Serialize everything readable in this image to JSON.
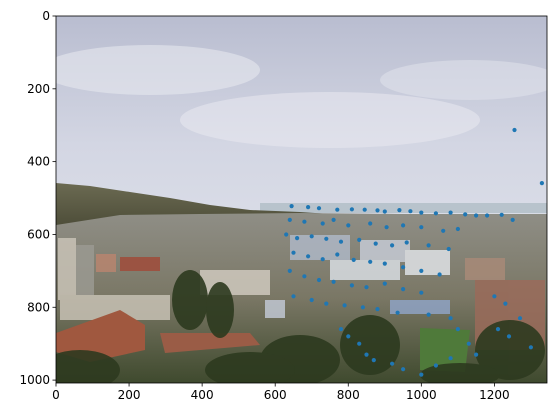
{
  "figure": {
    "x_ticks": [
      "0",
      "200",
      "400",
      "600",
      "800",
      "1000",
      "1200"
    ],
    "y_ticks": [
      "0",
      "200",
      "400",
      "600",
      "800",
      "1000"
    ],
    "x_tick_values": [
      0,
      200,
      400,
      600,
      800,
      1000,
      1200
    ],
    "y_tick_values": [
      0,
      200,
      400,
      600,
      800,
      1000
    ],
    "xlim": [
      0,
      1344
    ],
    "ylim": [
      1008,
      0
    ],
    "image_description": "Panoramic daytime photo of a hillside town with dense buildings, trees, and distant bay under a pale cloudy sky"
  },
  "chart_data": {
    "type": "scatter",
    "xlim": [
      0,
      1344
    ],
    "ylim": [
      1008,
      0
    ],
    "marker_color": "#1f77b4",
    "points": [
      [
        1255,
        313
      ],
      [
        1330,
        459
      ],
      [
        645,
        522
      ],
      [
        690,
        525
      ],
      [
        720,
        528
      ],
      [
        770,
        532
      ],
      [
        810,
        531
      ],
      [
        845,
        532
      ],
      [
        880,
        534
      ],
      [
        900,
        537
      ],
      [
        940,
        533
      ],
      [
        970,
        536
      ],
      [
        1000,
        540
      ],
      [
        1040,
        542
      ],
      [
        1080,
        540
      ],
      [
        1120,
        545
      ],
      [
        1150,
        548
      ],
      [
        1180,
        548
      ],
      [
        1220,
        546
      ],
      [
        1250,
        560
      ],
      [
        640,
        560
      ],
      [
        680,
        565
      ],
      [
        730,
        570
      ],
      [
        760,
        560
      ],
      [
        800,
        575
      ],
      [
        860,
        570
      ],
      [
        905,
        580
      ],
      [
        950,
        575
      ],
      [
        1000,
        580
      ],
      [
        1060,
        590
      ],
      [
        1100,
        585
      ],
      [
        630,
        600
      ],
      [
        660,
        610
      ],
      [
        700,
        605
      ],
      [
        740,
        612
      ],
      [
        780,
        620
      ],
      [
        830,
        615
      ],
      [
        875,
        625
      ],
      [
        920,
        630
      ],
      [
        960,
        622
      ],
      [
        1020,
        630
      ],
      [
        1075,
        640
      ],
      [
        650,
        650
      ],
      [
        690,
        660
      ],
      [
        730,
        668
      ],
      [
        770,
        655
      ],
      [
        815,
        670
      ],
      [
        860,
        675
      ],
      [
        900,
        680
      ],
      [
        950,
        690
      ],
      [
        1000,
        700
      ],
      [
        1050,
        710
      ],
      [
        640,
        700
      ],
      [
        680,
        715
      ],
      [
        720,
        725
      ],
      [
        760,
        730
      ],
      [
        810,
        740
      ],
      [
        850,
        745
      ],
      [
        900,
        735
      ],
      [
        950,
        750
      ],
      [
        1000,
        760
      ],
      [
        650,
        770
      ],
      [
        700,
        780
      ],
      [
        740,
        790
      ],
      [
        790,
        795
      ],
      [
        840,
        800
      ],
      [
        880,
        805
      ],
      [
        935,
        815
      ],
      [
        1020,
        820
      ],
      [
        1080,
        830
      ],
      [
        1200,
        770
      ],
      [
        1230,
        790
      ],
      [
        1270,
        830
      ],
      [
        1210,
        860
      ],
      [
        1240,
        880
      ],
      [
        1300,
        910
      ],
      [
        780,
        860
      ],
      [
        800,
        880
      ],
      [
        830,
        900
      ],
      [
        850,
        930
      ],
      [
        870,
        945
      ],
      [
        920,
        955
      ],
      [
        950,
        970
      ],
      [
        1000,
        985
      ],
      [
        1100,
        860
      ],
      [
        1130,
        900
      ],
      [
        1150,
        930
      ],
      [
        1080,
        940
      ],
      [
        1040,
        960
      ]
    ]
  }
}
